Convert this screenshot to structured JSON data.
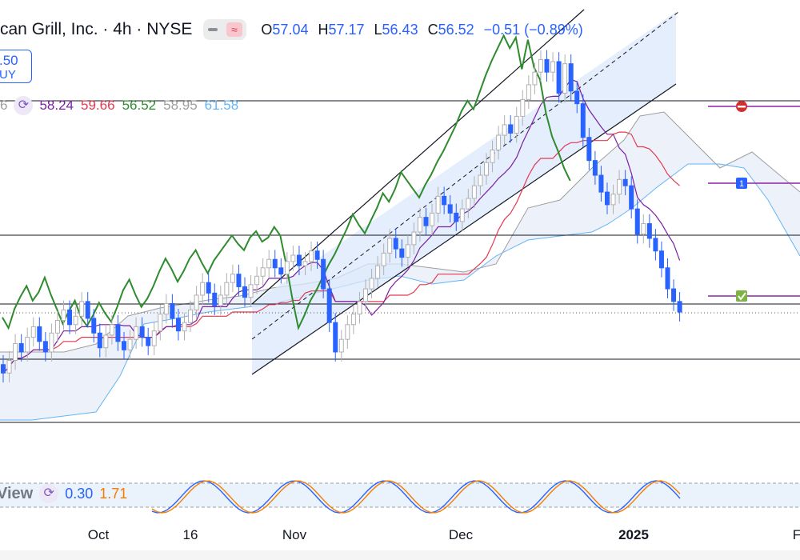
{
  "header": {
    "title": "can Grill, Inc. · 4h · NYSE",
    "ohlc": {
      "o_label": "O",
      "o": "57.04",
      "h_label": "H",
      "h": "57.17",
      "l_label": "L",
      "l": "56.43",
      "c_label": "C",
      "c": "56.52",
      "change": "−0.51 (−0.89%)"
    },
    "pill_icon": "wave-icon"
  },
  "price_box": {
    "value": ".50",
    "action": "UY"
  },
  "ichimoku": {
    "partial_label": "6",
    "values": [
      "58.24",
      "59.66",
      "56.52",
      "58.95",
      "61.58"
    ],
    "value_colors": [
      "#7b1fa2",
      "#e53950",
      "#2e8b2e",
      "#9e9e9e",
      "#64b5f6"
    ]
  },
  "stoch": {
    "name": "View",
    "k": "0.30",
    "d": "1.71",
    "k_color": "#2962ff",
    "d_color": "#f57c00"
  },
  "xaxis": [
    {
      "label": "Oct",
      "bold": false
    },
    {
      "label": "16",
      "bold": false
    },
    {
      "label": "Nov",
      "bold": false
    },
    {
      "label": "Dec",
      "bold": false
    },
    {
      "label": "2025",
      "bold": true
    },
    {
      "label": "F",
      "bold": false
    }
  ],
  "markers": [
    {
      "icon": "minus-circle-icon",
      "color": "#d32f2f"
    },
    {
      "icon": "number-one-icon",
      "label": "1",
      "color": "#2962ff"
    },
    {
      "icon": "checkmark-icon",
      "color": "#7cb342"
    }
  ],
  "chart_data": {
    "type": "candlestick",
    "interval": "4h",
    "price_series": {
      "name": "",
      "close": [
        53.6,
        54.2,
        55.0,
        54.6,
        55.3,
        55.8,
        55.1,
        54.6,
        55.5,
        56.1,
        56.6,
        55.9,
        56.3,
        57.0,
        56.2,
        55.5,
        54.8,
        55.4,
        55.9,
        55.1,
        54.7,
        55.2,
        55.8,
        55.3,
        54.9,
        55.6,
        56.4,
        56.9,
        56.2,
        55.6,
        56.0,
        56.6,
        57.3,
        57.9,
        57.4,
        56.8,
        57.3,
        57.9,
        58.3,
        57.7,
        57.2,
        57.8,
        58.2,
        58.6,
        59.0,
        58.6,
        58.3,
        58.9,
        59.2,
        58.7,
        58.9,
        59.4,
        59.0,
        57.6,
        56.0,
        54.6,
        55.2,
        55.9,
        56.4,
        57.0,
        57.6,
        58.1,
        58.7,
        59.3,
        60.0,
        59.5,
        59.1,
        59.7,
        60.3,
        61.0,
        60.6,
        61.2,
        62.0,
        61.6,
        61.2,
        60.8,
        61.4,
        61.9,
        62.5,
        63.0,
        63.6,
        64.2,
        64.9,
        65.4,
        65.0,
        65.8,
        66.6,
        67.3,
        67.9,
        68.5,
        67.9,
        68.4,
        66.9,
        68.3,
        67.0,
        66.4,
        64.8,
        63.7,
        63.0,
        62.2,
        61.6,
        62.1,
        62.8,
        62.5,
        61.4,
        60.2,
        60.7,
        60.0,
        59.4,
        58.6,
        57.6,
        57.0,
        56.5
      ]
    },
    "ichimoku": {
      "conversion_line": [],
      "base_line": [],
      "leading_span_a": [],
      "leading_span_b": [],
      "lagging_span": []
    },
    "stochastic": {
      "k_last": 0.3,
      "d_last": 1.71,
      "upper_band": 80,
      "lower_band": 20
    },
    "channel": "parallel rising channel (Oct 25 – Dec 20)",
    "grid": false
  }
}
